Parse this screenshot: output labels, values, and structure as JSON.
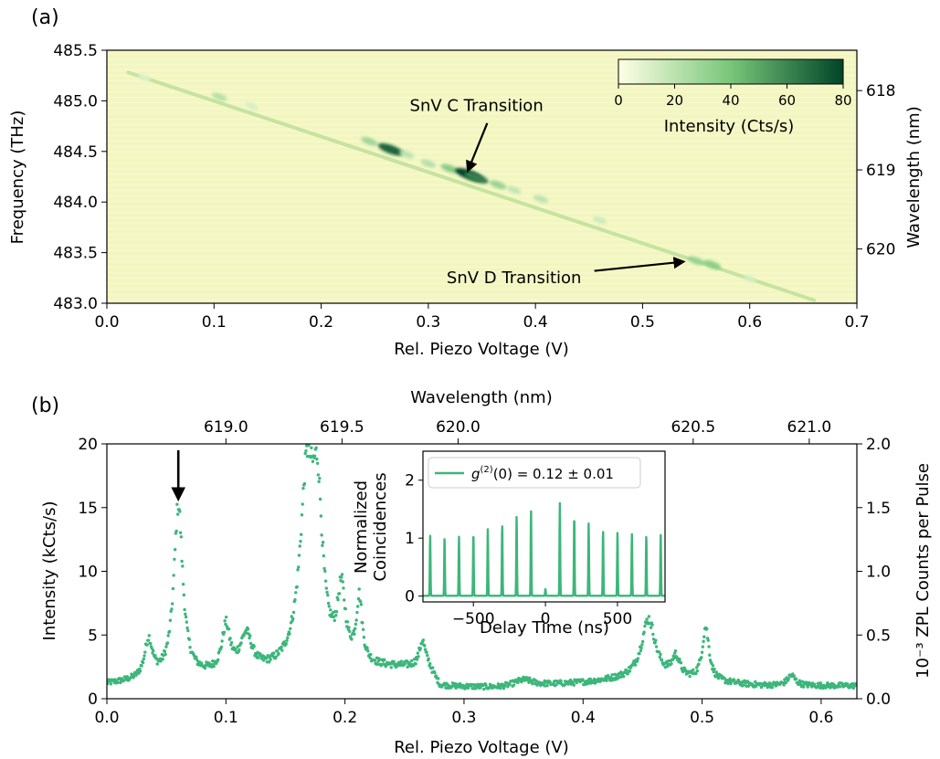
{
  "panels": {
    "a": "(a)",
    "b": "(b)"
  },
  "chart_data": [
    {
      "type": "heatmap",
      "panel": "(a)",
      "xlabel": "Rel. Piezo Voltage (V)",
      "ylabel": "Frequency (THz)",
      "y2label": "Wavelength (nm)",
      "xlim": [
        0.0,
        0.7
      ],
      "ylim": [
        483.0,
        485.5
      ],
      "x_ticks": [
        "0.0",
        "0.1",
        "0.2",
        "0.3",
        "0.4",
        "0.5",
        "0.6",
        "0.7"
      ],
      "y_ticks": [
        "483.0",
        "483.5",
        "484.0",
        "484.5",
        "485.0",
        "485.5"
      ],
      "y2_ticks": [
        {
          "label": "618",
          "nm": 618
        },
        {
          "label": "619",
          "nm": 619
        },
        {
          "label": "620",
          "nm": 620
        }
      ],
      "colorbar": {
        "label": "Intensity (Cts/s)",
        "range": [
          0,
          80
        ],
        "ticks": [
          "0",
          "20",
          "40",
          "60",
          "80"
        ],
        "colors": [
          "#ffffe5",
          "#78c679",
          "#004529"
        ]
      },
      "background_color": "#f4f7c4",
      "line": {
        "x_start": 0.02,
        "f_start": 485.28,
        "x_end": 0.66,
        "f_end": 483.03
      },
      "features": [
        {
          "x": 0.035,
          "f": 485.23,
          "intensity": 10
        },
        {
          "x": 0.105,
          "f": 485.04,
          "intensity": 22
        },
        {
          "x": 0.135,
          "f": 484.95,
          "intensity": 12
        },
        {
          "x": 0.245,
          "f": 484.6,
          "intensity": 28
        },
        {
          "x": 0.265,
          "f": 484.52,
          "intensity": 70
        },
        {
          "x": 0.28,
          "f": 484.47,
          "intensity": 20
        },
        {
          "x": 0.3,
          "f": 484.38,
          "intensity": 22
        },
        {
          "x": 0.32,
          "f": 484.33,
          "intensity": 35
        },
        {
          "x": 0.338,
          "f": 484.27,
          "intensity": 80
        },
        {
          "x": 0.345,
          "f": 484.24,
          "intensity": 62
        },
        {
          "x": 0.365,
          "f": 484.17,
          "intensity": 30
        },
        {
          "x": 0.38,
          "f": 484.12,
          "intensity": 18
        },
        {
          "x": 0.405,
          "f": 484.03,
          "intensity": 20
        },
        {
          "x": 0.46,
          "f": 483.82,
          "intensity": 15
        },
        {
          "x": 0.55,
          "f": 483.42,
          "intensity": 30
        },
        {
          "x": 0.565,
          "f": 483.38,
          "intensity": 34
        },
        {
          "x": 0.6,
          "f": 483.24,
          "intensity": 12
        }
      ],
      "annotations": [
        {
          "text": "SnV C Transition",
          "text_x": 0.345,
          "text_f": 484.9,
          "arrow_from": [
            0.355,
            484.78
          ],
          "arrow_to": [
            0.337,
            484.31
          ]
        },
        {
          "text": "SnV D Transition",
          "text_x": 0.38,
          "text_f": 483.2,
          "arrow_from": [
            0.455,
            483.32
          ],
          "arrow_to": [
            0.538,
            483.41
          ]
        }
      ]
    },
    {
      "type": "scatter",
      "panel": "(b)",
      "xlabel": "Rel. Piezo Voltage (V)",
      "ylabel": "Intensity (kCts/s)",
      "x2label": "Wavelength (nm)",
      "y2label": "10⁻³ ZPL Counts per Pulse",
      "xlim": [
        0.0,
        0.63
      ],
      "ylim": [
        0,
        20
      ],
      "y2lim": [
        0.0,
        2.0
      ],
      "x_ticks": [
        "0.0",
        "0.1",
        "0.2",
        "0.3",
        "0.4",
        "0.5",
        "0.6"
      ],
      "y_ticks": [
        "0",
        "5",
        "10",
        "15",
        "20"
      ],
      "y2_ticks": [
        "0.0",
        "0.5",
        "1.0",
        "1.5",
        "2.0"
      ],
      "x2_ticks": [
        {
          "label": "619.0",
          "voltage": 0.1
        },
        {
          "label": "619.5",
          "voltage": 0.1975
        },
        {
          "label": "620.0",
          "voltage": 0.295
        },
        {
          "label": "620.5",
          "voltage": 0.4925
        },
        {
          "label": "621.0",
          "voltage": 0.59
        }
      ],
      "color": "#3cb67a",
      "baseline": [
        [
          0.0,
          1.1
        ],
        [
          0.1,
          1.8
        ],
        [
          0.22,
          2.3
        ],
        [
          0.27,
          2.4
        ],
        [
          0.28,
          0.9
        ],
        [
          0.33,
          0.8
        ],
        [
          0.4,
          1.2
        ],
        [
          0.45,
          1.6
        ],
        [
          0.5,
          1.3
        ],
        [
          0.55,
          1.0
        ],
        [
          0.63,
          1.0
        ]
      ],
      "peaks": [
        {
          "x": 0.035,
          "height": 3.0,
          "width": 0.004
        },
        {
          "x": 0.06,
          "height": 13.5,
          "width": 0.0045
        },
        {
          "x": 0.1,
          "height": 3.5,
          "width": 0.004
        },
        {
          "x": 0.117,
          "height": 2.8,
          "width": 0.006
        },
        {
          "x": 0.168,
          "height": 14.5,
          "width": 0.007
        },
        {
          "x": 0.177,
          "height": 11.0,
          "width": 0.005
        },
        {
          "x": 0.197,
          "height": 5.5,
          "width": 0.004
        },
        {
          "x": 0.212,
          "height": 5.0,
          "width": 0.003
        },
        {
          "x": 0.265,
          "height": 2.0,
          "width": 0.003
        },
        {
          "x": 0.35,
          "height": 0.5,
          "width": 0.01
        },
        {
          "x": 0.455,
          "height": 4.6,
          "width": 0.007
        },
        {
          "x": 0.478,
          "height": 1.6,
          "width": 0.004
        },
        {
          "x": 0.503,
          "height": 4.2,
          "width": 0.0035
        },
        {
          "x": 0.575,
          "height": 0.8,
          "width": 0.004
        }
      ],
      "arrow": {
        "x": 0.06,
        "from_y": 19.5,
        "to_y": 15.7
      },
      "inset": {
        "type": "line",
        "xlabel": "Delay Time (ns)",
        "ylabel_lines": [
          "Normalized",
          "Coincidences"
        ],
        "xlim": [
          -850,
          830
        ],
        "ylim": [
          -0.1,
          2.5
        ],
        "x_ticks": [
          "−500",
          "0",
          "500"
        ],
        "x_tick_values": [
          -500,
          0,
          500
        ],
        "y_ticks": [
          "0",
          "1",
          "2"
        ],
        "legend": "g⁽²⁾(0) = 0.12 ± 0.01",
        "legend_base": "g",
        "legend_sup": "(2)",
        "legend_rest": "(0) = 0.12 ± 0.01",
        "peak_spacing_ns": 100,
        "peak_times": [
          -800,
          -700,
          -600,
          -500,
          -400,
          -300,
          -200,
          -100,
          0,
          100,
          200,
          300,
          400,
          500,
          600,
          700,
          800
        ],
        "peak_heights": [
          1.05,
          1.02,
          1.02,
          1.1,
          1.15,
          1.25,
          1.38,
          1.48,
          0.12,
          1.6,
          1.4,
          1.25,
          1.15,
          1.1,
          1.08,
          1.06,
          1.05
        ]
      }
    }
  ]
}
